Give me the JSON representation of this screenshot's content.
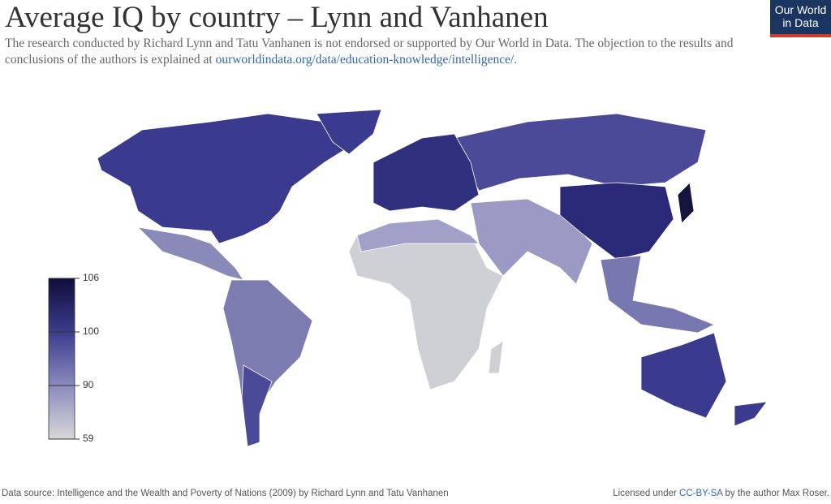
{
  "header": {
    "title": "Average IQ by country – Lynn and Vanhanen",
    "subtitle": "The research conducted by Richard Lynn and Tatu Vanhanen is not endorsed or supported by Our World in Data. The objection to the results and conclusions of the authors is explained at",
    "subtitle_link": "ourworldindata.org/data/education-knowledge/intelligence/",
    "subtitle_end": "."
  },
  "logo": {
    "line1": "Our World",
    "line2": "in Data"
  },
  "legend": {
    "ticks": [
      59,
      90,
      100,
      106
    ],
    "colors": [
      "#d8d8d8",
      "#8a8abe",
      "#3c3c8e",
      "#0e0e3a"
    ]
  },
  "footer": {
    "source": "Data source: Intelligence and the Wealth and Poverty of Nations (2009) by Richard Lynn and Tatu Vanhanen",
    "license_prefix": "Licensed under",
    "license_link": "CC-BY-SA",
    "license_suffix": "by the author Max Roser."
  }
}
